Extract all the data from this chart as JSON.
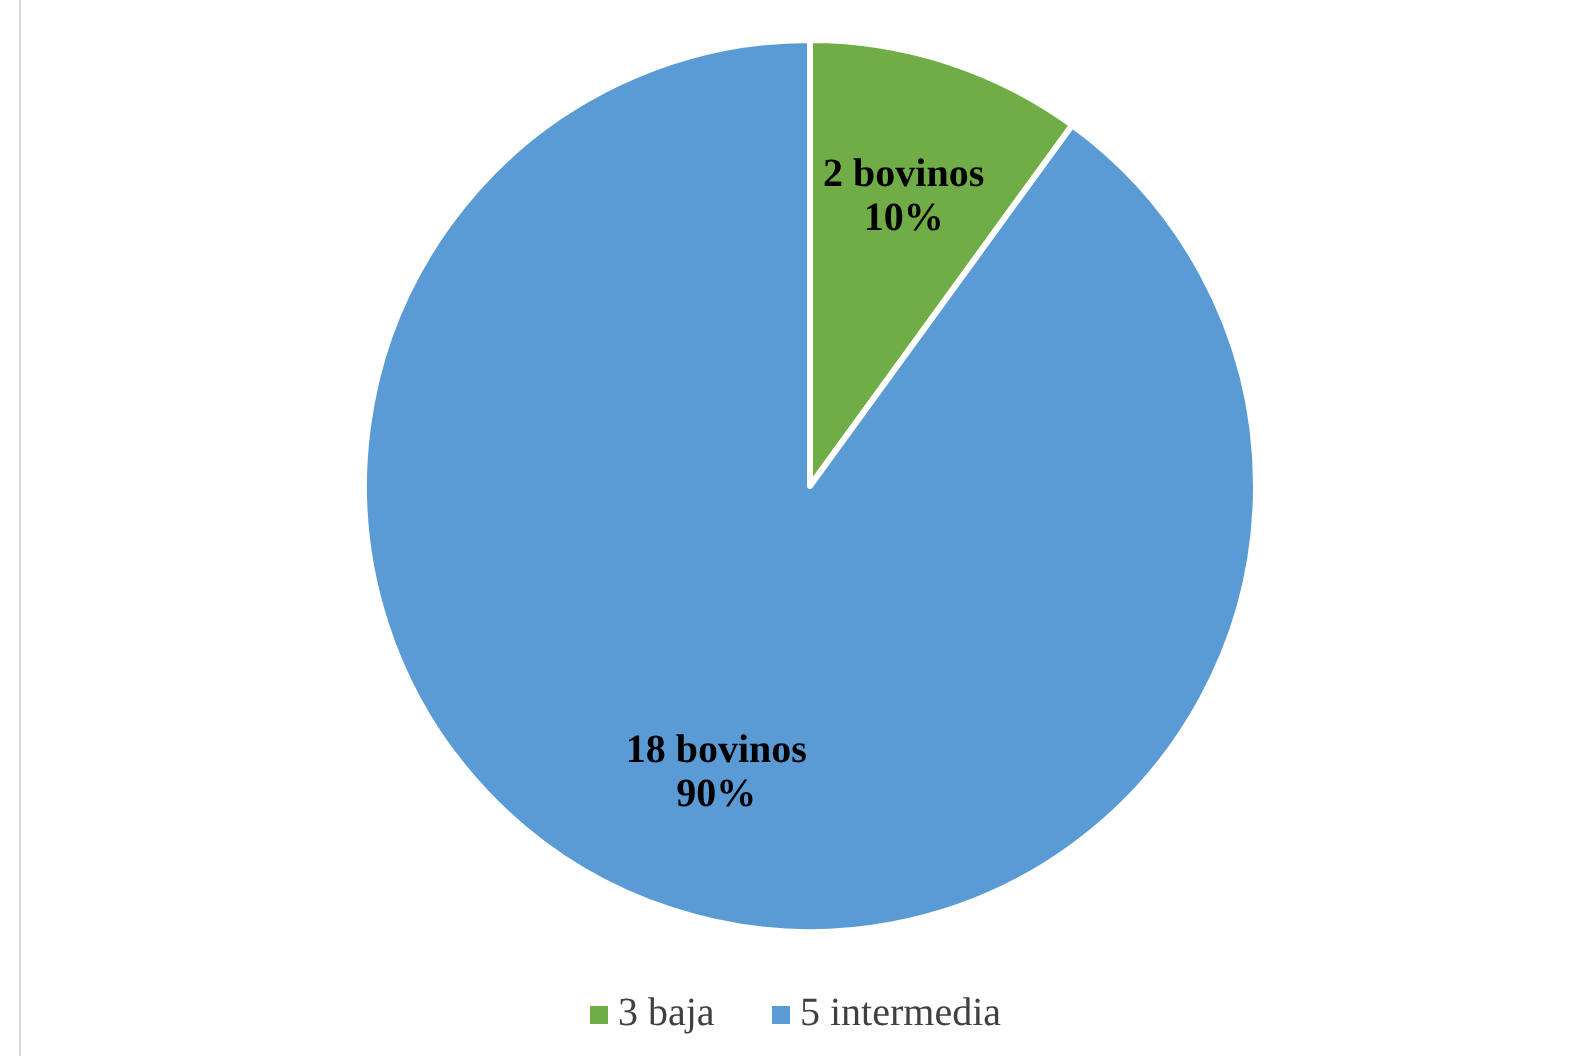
{
  "chart_data": {
    "type": "pie",
    "categories": [
      "3 baja",
      "5 intermedia"
    ],
    "values": [
      2,
      18
    ],
    "colors": [
      "#70ad47",
      "#5b9bd5"
    ],
    "value_labels": [
      "2 bovinos\n10%",
      "18 bovinos\n90%"
    ],
    "legend": "bottom"
  }
}
